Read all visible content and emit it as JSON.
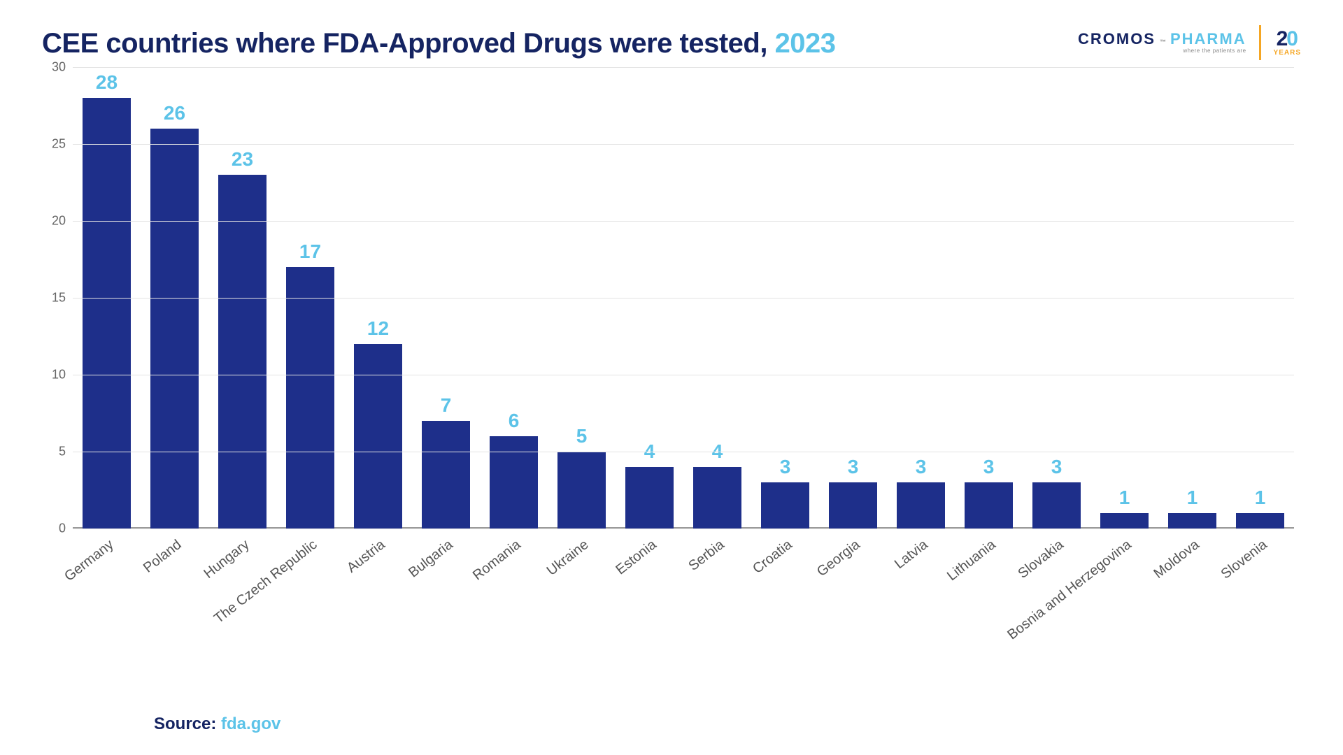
{
  "title_main": "CEE countries where FDA-Approved Drugs were tested, ",
  "title_year": "2023",
  "logo": {
    "brand_a": "CROMOS",
    "brand_b": "PHARMA",
    "tagline": "where the patients are",
    "tm": "™",
    "twenty_2": "2",
    "twenty_0": "0",
    "years": "YEARS"
  },
  "chart": {
    "type": "bar",
    "ylim_max": 30,
    "yticks": [
      0,
      5,
      10,
      15,
      20,
      25,
      30
    ],
    "bar_color": "#1e2f8a",
    "value_label_color": "#5cc3e8",
    "grid_color": "#e3e3e3",
    "background_color": "#ffffff",
    "value_fontsize": 28,
    "xlabel_fontsize": 20,
    "ytick_fontsize": 18,
    "xlabel_rotation_deg": -38,
    "bar_width_ratio": 0.72,
    "bars": [
      {
        "label": "Germany",
        "value": 28
      },
      {
        "label": "Poland",
        "value": 26
      },
      {
        "label": "Hungary",
        "value": 23
      },
      {
        "label": "The Czech Republic",
        "value": 17
      },
      {
        "label": "Austria",
        "value": 12
      },
      {
        "label": "Bulgaria",
        "value": 7
      },
      {
        "label": "Romania",
        "value": 6
      },
      {
        "label": "Ukraine",
        "value": 5
      },
      {
        "label": "Estonia",
        "value": 4
      },
      {
        "label": "Serbia",
        "value": 4
      },
      {
        "label": "Croatia",
        "value": 3
      },
      {
        "label": "Georgia",
        "value": 3
      },
      {
        "label": "Latvia",
        "value": 3
      },
      {
        "label": "Lithuania",
        "value": 3
      },
      {
        "label": "Slovakia",
        "value": 3
      },
      {
        "label": "Bosnia and Herzegovina",
        "value": 1
      },
      {
        "label": "Moldova",
        "value": 1
      },
      {
        "label": "Slovenia",
        "value": 1
      }
    ]
  },
  "source_label": "Source: ",
  "source_link": "fda.gov"
}
